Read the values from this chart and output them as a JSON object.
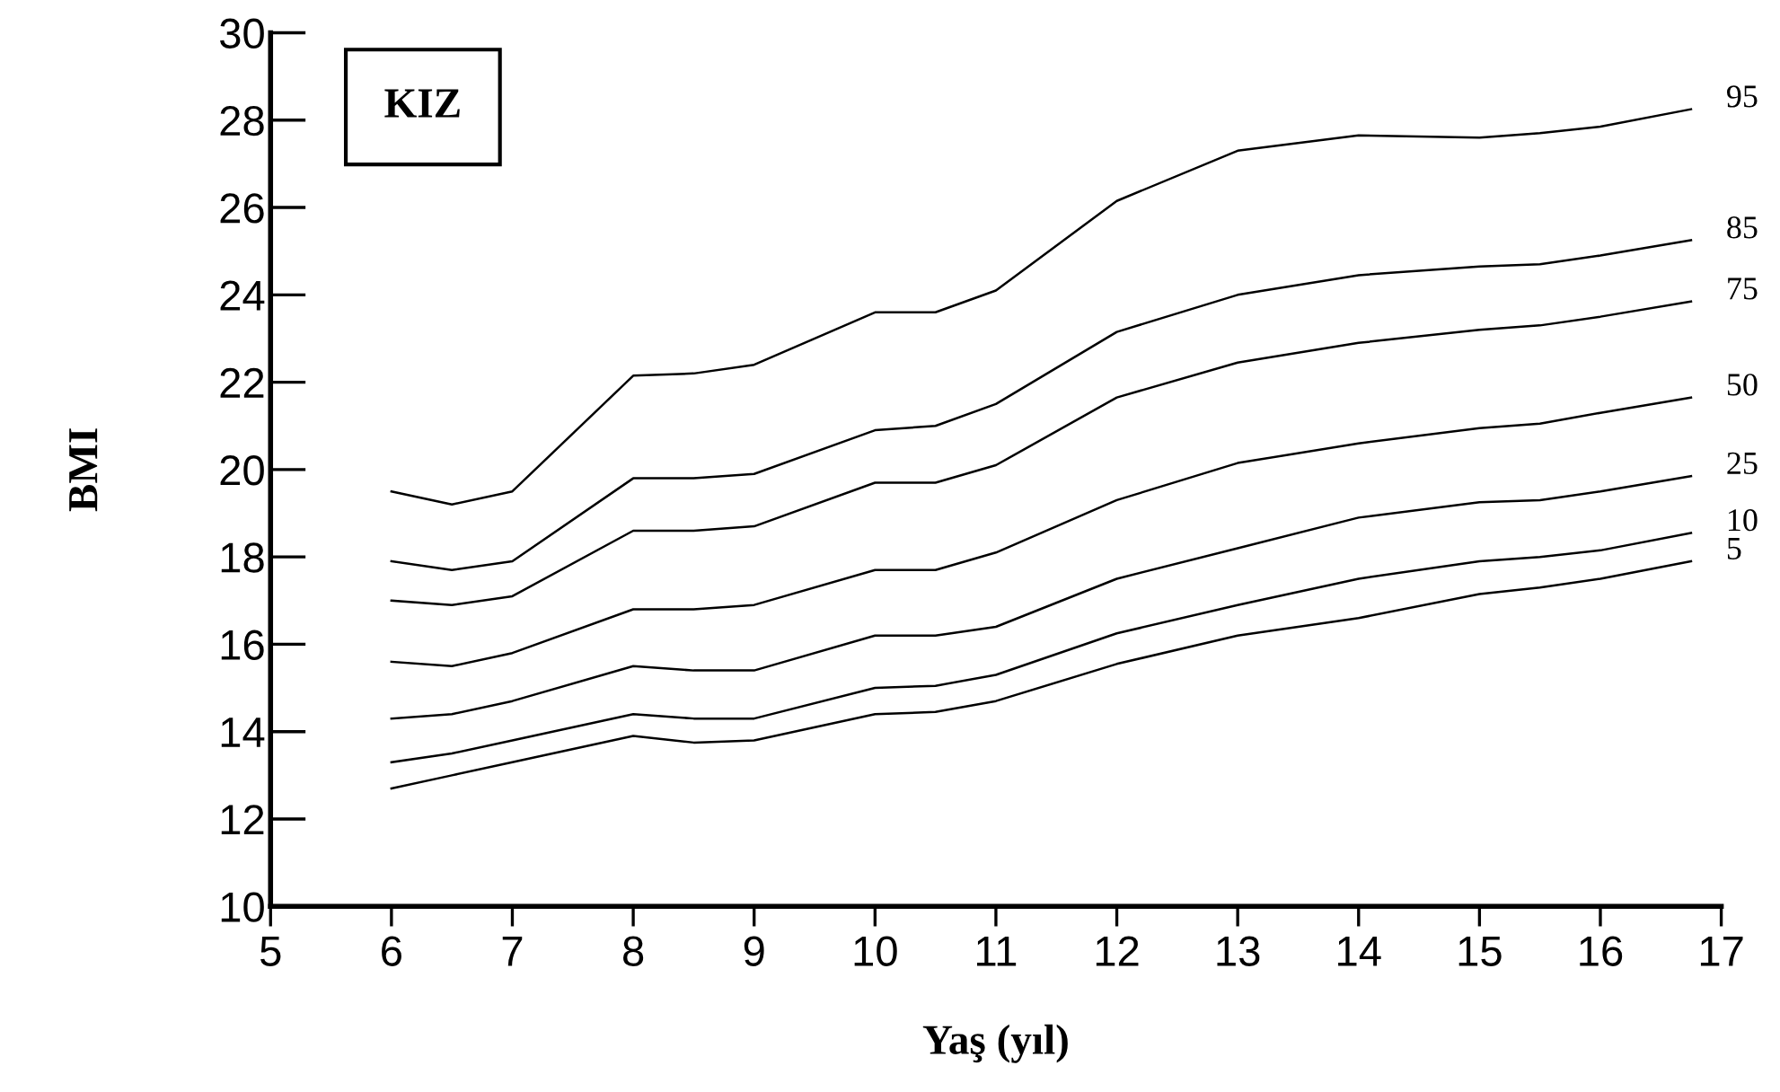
{
  "chart_data": {
    "type": "line",
    "xlabel": "Yaş (yıl)",
    "ylabel": "BMI",
    "annotations": [
      "KIZ"
    ],
    "x": [
      6,
      6.5,
      7,
      8,
      8.5,
      9,
      10,
      10.5,
      11,
      12,
      13,
      14,
      15,
      15.5,
      16,
      16.75
    ],
    "series": [
      {
        "name": "95",
        "color": "#000000",
        "values": [
          19.5,
          19.2,
          19.5,
          22.15,
          22.2,
          22.4,
          23.6,
          23.6,
          24.1,
          26.15,
          27.3,
          27.65,
          27.6,
          27.7,
          27.85,
          28.25
        ]
      },
      {
        "name": "85",
        "color": "#000000",
        "values": [
          17.9,
          17.7,
          17.9,
          19.8,
          19.8,
          19.9,
          20.9,
          21.0,
          21.5,
          23.15,
          24.0,
          24.45,
          24.65,
          24.7,
          24.9,
          25.25
        ]
      },
      {
        "name": "75",
        "color": "#000000",
        "values": [
          17.0,
          16.9,
          17.1,
          18.6,
          18.6,
          18.7,
          19.7,
          19.7,
          20.1,
          21.65,
          22.45,
          22.9,
          23.2,
          23.3,
          23.5,
          23.85
        ]
      },
      {
        "name": "50",
        "color": "#000000",
        "values": [
          15.6,
          15.5,
          15.8,
          16.8,
          16.8,
          16.9,
          17.7,
          17.7,
          18.1,
          19.3,
          20.15,
          20.6,
          20.95,
          21.05,
          21.3,
          21.65
        ]
      },
      {
        "name": "25",
        "color": "#000000",
        "values": [
          14.3,
          14.4,
          14.7,
          15.5,
          15.4,
          15.4,
          16.2,
          16.2,
          16.4,
          17.5,
          18.2,
          18.9,
          19.25,
          19.3,
          19.5,
          19.85
        ]
      },
      {
        "name": "10",
        "color": "#000000",
        "values": [
          13.3,
          13.5,
          13.8,
          14.4,
          14.3,
          14.3,
          15.0,
          15.05,
          15.3,
          16.25,
          16.9,
          17.5,
          17.9,
          18.0,
          18.15,
          18.55
        ]
      },
      {
        "name": "5",
        "color": "#000000",
        "values": [
          12.7,
          13.0,
          13.3,
          13.9,
          13.75,
          13.8,
          14.4,
          14.45,
          14.7,
          15.55,
          16.2,
          16.6,
          17.15,
          17.3,
          17.5,
          17.9
        ]
      }
    ],
    "xlim": [
      5,
      17
    ],
    "ylim": [
      10,
      30
    ],
    "xticks": [
      5,
      6,
      7,
      8,
      9,
      10,
      11,
      12,
      13,
      14,
      15,
      16,
      17
    ],
    "yticks": [
      10,
      12,
      14,
      16,
      18,
      20,
      22,
      24,
      26,
      28,
      30
    ],
    "grid": false,
    "legend": false,
    "marker": "none",
    "line_style": "solid"
  }
}
